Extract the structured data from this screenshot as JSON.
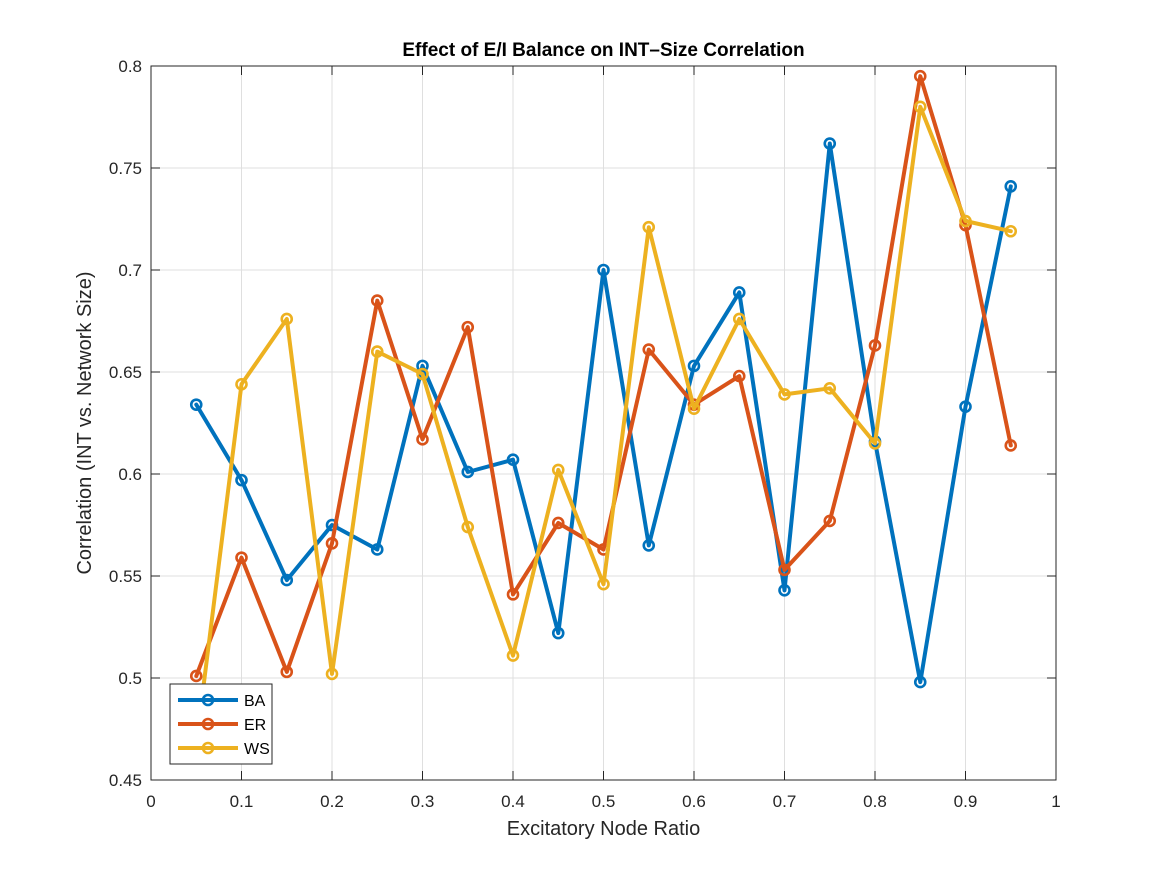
{
  "chart_data": {
    "type": "line",
    "title": "Effect of E/I Balance on INT–Size Correlation",
    "xlabel": "Excitatory Node Ratio",
    "ylabel": "Correlation (INT vs. Network Size)",
    "xlim": [
      0,
      1
    ],
    "ylim": [
      0.45,
      0.8
    ],
    "xticks": [
      0,
      0.1,
      0.2,
      0.3,
      0.4,
      0.5,
      0.6,
      0.7,
      0.8,
      0.9,
      1
    ],
    "xtick_labels": [
      "0",
      "0.1",
      "0.2",
      "0.3",
      "0.4",
      "0.5",
      "0.6",
      "0.7",
      "0.8",
      "0.9",
      "1"
    ],
    "yticks": [
      0.45,
      0.5,
      0.55,
      0.6,
      0.65,
      0.7,
      0.75,
      0.8
    ],
    "ytick_labels": [
      "0.45",
      "0.5",
      "0.55",
      "0.6",
      "0.65",
      "0.7",
      "0.75",
      "0.8"
    ],
    "grid": true,
    "legend_position": "bottom-left",
    "x": [
      0.05,
      0.1,
      0.15,
      0.2,
      0.25,
      0.3,
      0.35,
      0.4,
      0.45,
      0.5,
      0.55,
      0.6,
      0.65,
      0.7,
      0.75,
      0.8,
      0.85,
      0.9,
      0.95
    ],
    "series": [
      {
        "name": "BA",
        "color": "#0072BD",
        "values": [
          0.634,
          0.597,
          0.548,
          0.575,
          0.563,
          0.653,
          0.601,
          0.607,
          0.522,
          0.7,
          0.565,
          0.653,
          0.689,
          0.543,
          0.762,
          0.616,
          0.498,
          0.633,
          0.741
        ]
      },
      {
        "name": "ER",
        "color": "#D95319",
        "values": [
          0.501,
          0.559,
          0.503,
          0.566,
          0.685,
          0.617,
          0.672,
          0.541,
          0.576,
          0.563,
          0.661,
          0.634,
          0.648,
          0.553,
          0.577,
          0.663,
          0.795,
          0.722,
          0.614
        ]
      },
      {
        "name": "WS",
        "color": "#EDB120",
        "values": [
          0.468,
          0.644,
          0.676,
          0.502,
          0.66,
          0.649,
          0.574,
          0.511,
          0.602,
          0.546,
          0.721,
          0.632,
          0.676,
          0.639,
          0.642,
          0.615,
          0.78,
          0.724,
          0.719
        ]
      }
    ]
  }
}
